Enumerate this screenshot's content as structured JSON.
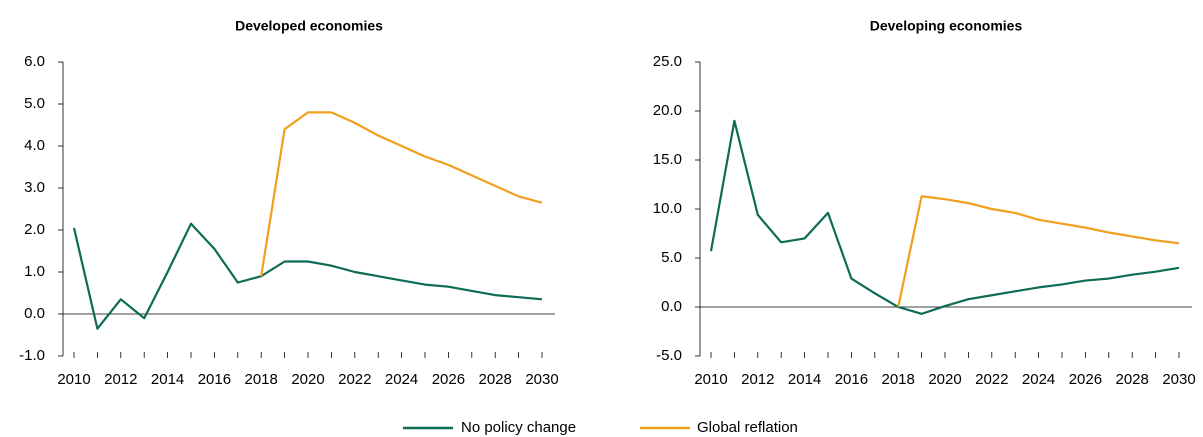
{
  "chart_data": [
    {
      "type": "line",
      "title": "Developed economies",
      "x": [
        2010,
        2011,
        2012,
        2013,
        2014,
        2015,
        2016,
        2017,
        2018,
        2019,
        2020,
        2021,
        2022,
        2023,
        2024,
        2025,
        2026,
        2027,
        2028,
        2029,
        2030
      ],
      "xlim": [
        2010,
        2030
      ],
      "xticks": [
        2010,
        2012,
        2014,
        2016,
        2018,
        2020,
        2022,
        2024,
        2026,
        2028,
        2030
      ],
      "ylim": [
        -1,
        6
      ],
      "yticks": [
        {
          "value": -1,
          "label": "-1.0"
        },
        {
          "value": 0,
          "label": "0.0"
        },
        {
          "value": 1,
          "label": "1.0"
        },
        {
          "value": 2,
          "label": "2.0"
        },
        {
          "value": 3,
          "label": "3.0"
        },
        {
          "value": 4,
          "label": "4.0"
        },
        {
          "value": 5,
          "label": "5.0"
        },
        {
          "value": 6,
          "label": "6.0"
        }
      ],
      "series": [
        {
          "name": "No policy change",
          "color": "#0e6b55",
          "values": [
            2.05,
            -0.35,
            0.35,
            -0.1,
            1.0,
            2.15,
            1.55,
            0.75,
            0.9,
            1.25,
            1.25,
            1.15,
            1.0,
            0.9,
            0.8,
            0.7,
            0.65,
            0.55,
            0.45,
            0.4,
            0.35
          ]
        },
        {
          "name": "Global reflation",
          "color": "#f0a01e",
          "values": [
            null,
            null,
            null,
            null,
            null,
            null,
            null,
            null,
            0.9,
            4.4,
            4.8,
            4.8,
            4.55,
            4.25,
            4.0,
            3.75,
            3.55,
            3.3,
            3.05,
            2.8,
            2.65
          ]
        }
      ]
    },
    {
      "type": "line",
      "title": "Developing economies",
      "x": [
        2010,
        2011,
        2012,
        2013,
        2014,
        2015,
        2016,
        2017,
        2018,
        2019,
        2020,
        2021,
        2022,
        2023,
        2024,
        2025,
        2026,
        2027,
        2028,
        2029,
        2030
      ],
      "xlim": [
        2010,
        2030
      ],
      "xticks": [
        2010,
        2012,
        2014,
        2016,
        2018,
        2020,
        2022,
        2024,
        2026,
        2028,
        2030
      ],
      "ylim": [
        -5,
        25
      ],
      "yticks": [
        {
          "value": -5,
          "label": "-5.0"
        },
        {
          "value": 0,
          "label": "0.0"
        },
        {
          "value": 5,
          "label": "5.0"
        },
        {
          "value": 10,
          "label": "10.0"
        },
        {
          "value": 15,
          "label": "15.0"
        },
        {
          "value": 20,
          "label": "20.0"
        },
        {
          "value": 25,
          "label": "25.0"
        }
      ],
      "series": [
        {
          "color": "#0e6b55",
          "values": [
            5.7,
            19.0,
            9.4,
            6.6,
            7.0,
            9.6,
            2.9,
            1.4,
            0.0,
            -0.7,
            0.1,
            0.8,
            1.2,
            1.6,
            2.0,
            2.3,
            2.7,
            2.9,
            3.3,
            3.6,
            4.0
          ]
        },
        {
          "color": "#f0a01e",
          "values": [
            null,
            null,
            null,
            null,
            null,
            null,
            null,
            null,
            0.0,
            11.3,
            11.0,
            10.6,
            10.0,
            9.6,
            8.9,
            8.5,
            8.1,
            7.6,
            7.2,
            6.8,
            6.5
          ]
        }
      ]
    }
  ]
}
